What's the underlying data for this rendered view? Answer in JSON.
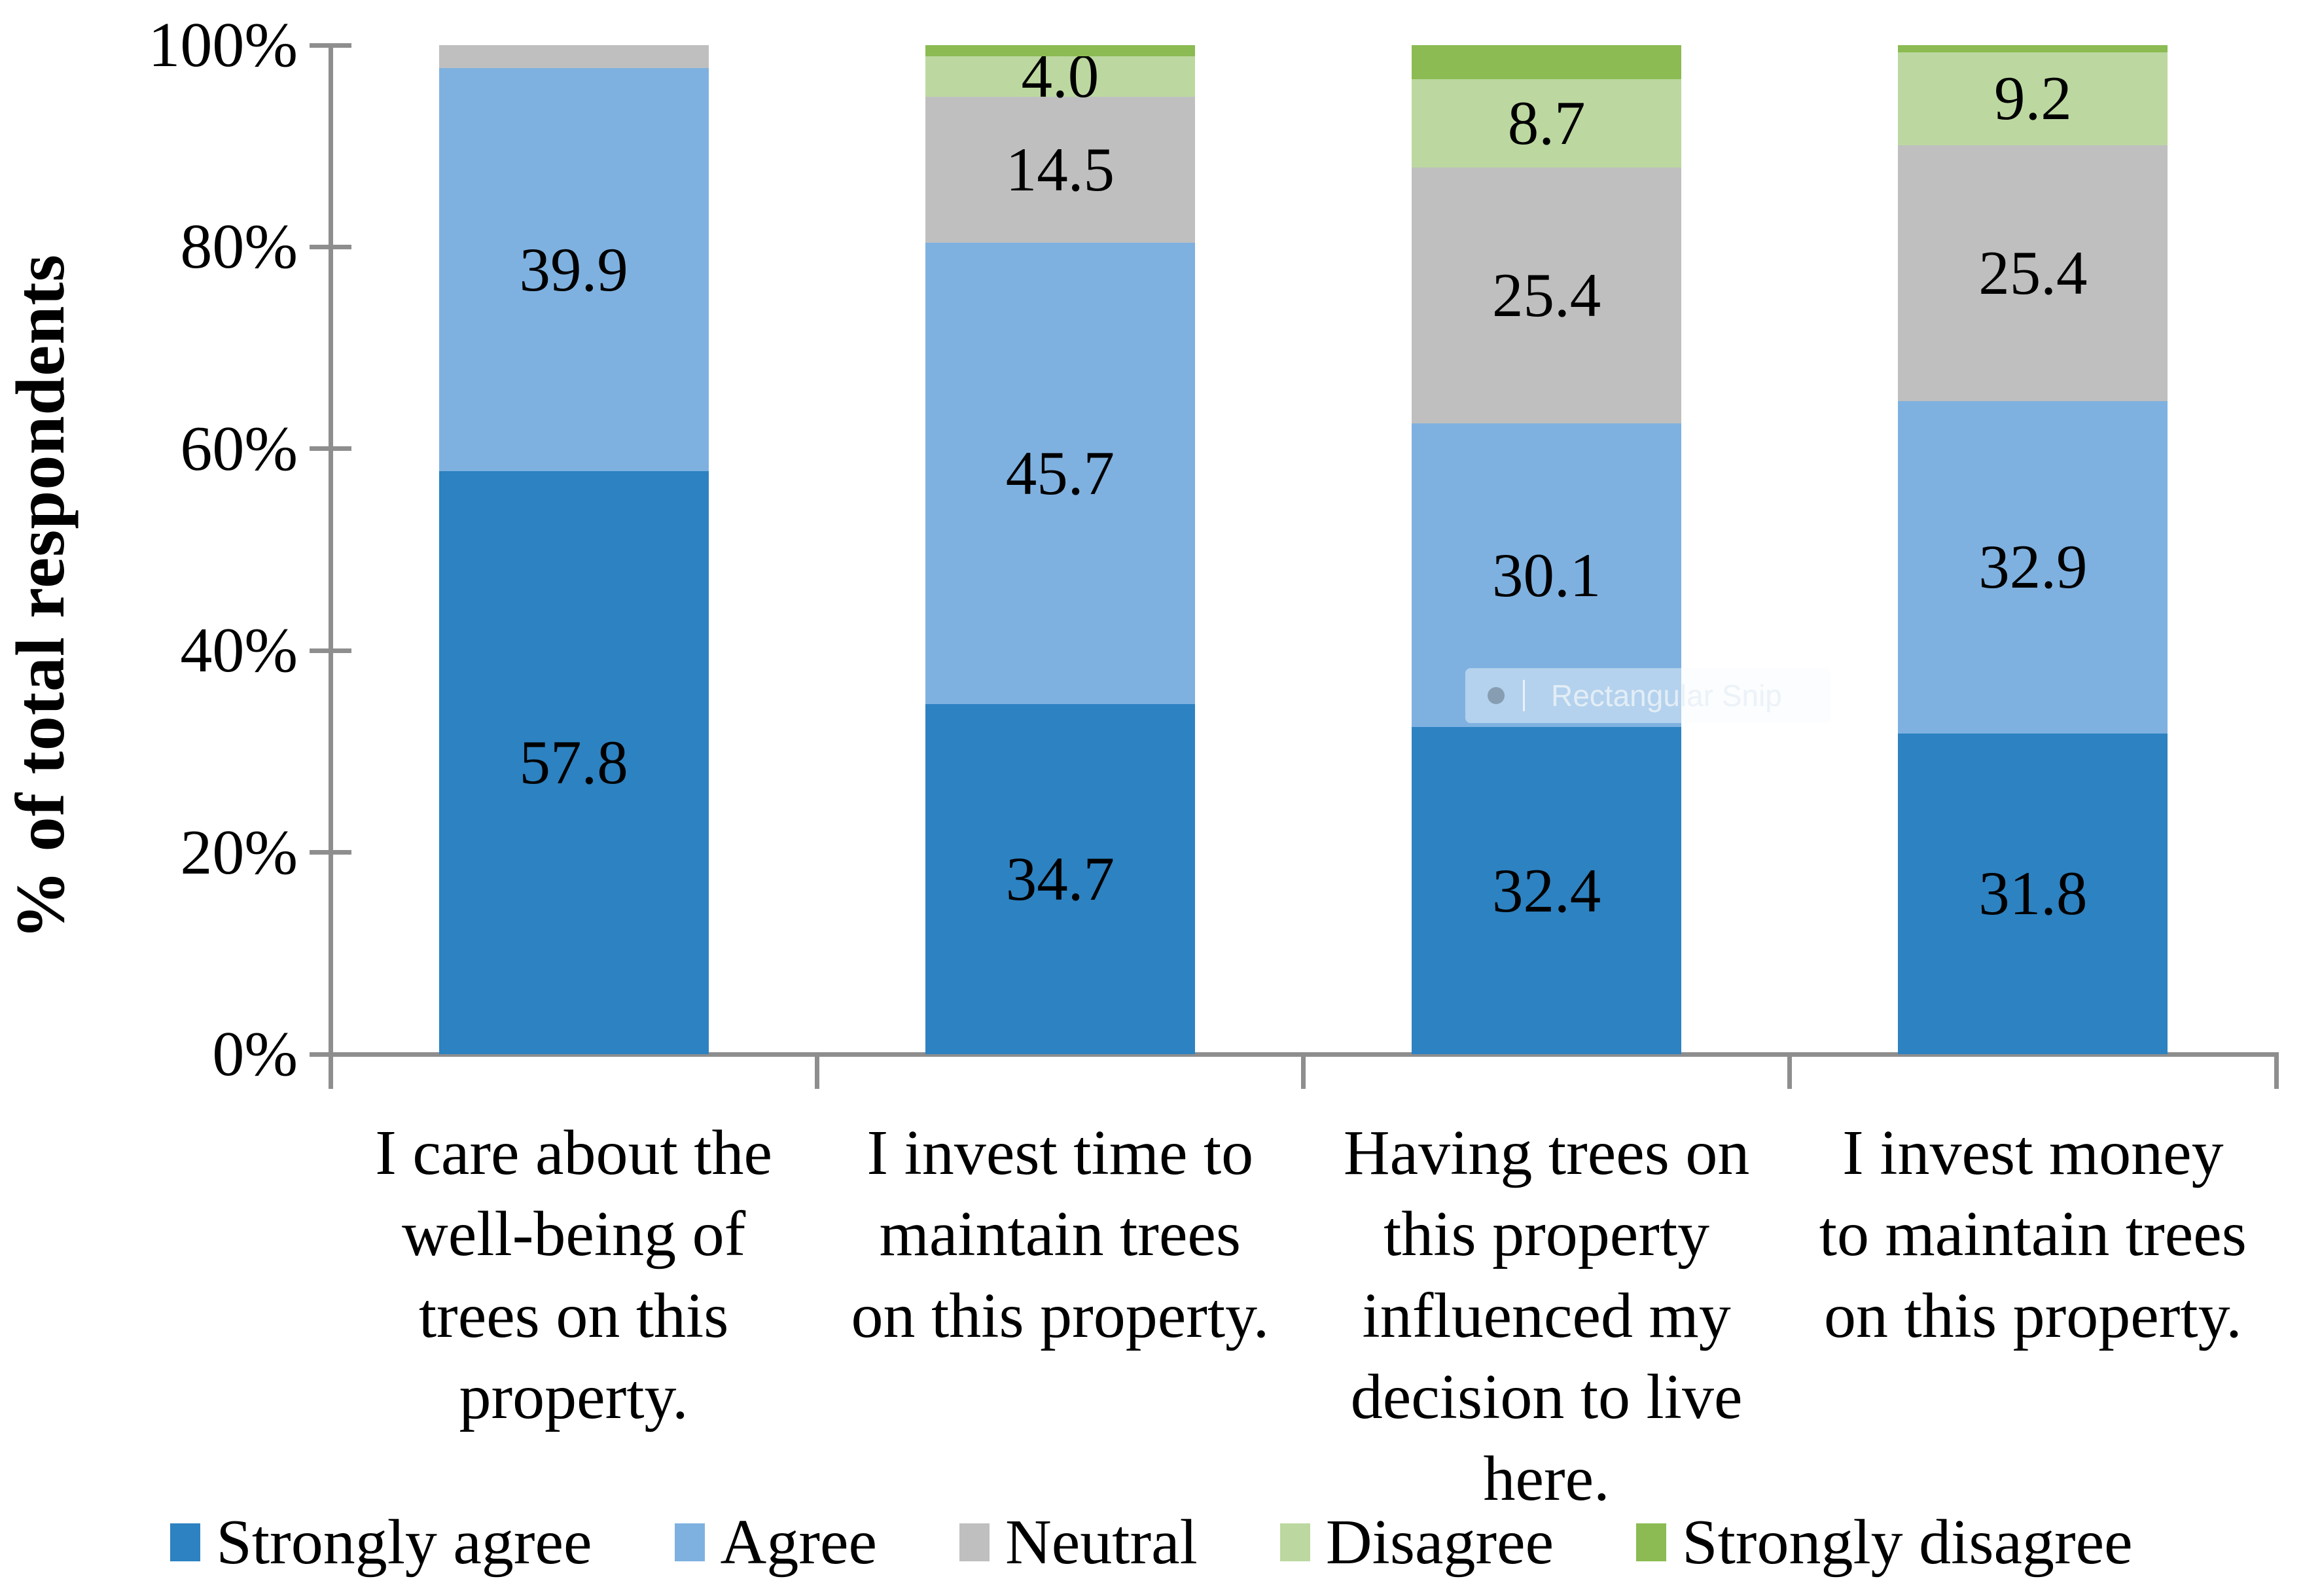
{
  "chart_data": {
    "type": "bar",
    "subtype": "stacked-100",
    "title": "",
    "ylabel": "% of total respondents",
    "xlabel": "",
    "ylim": [
      0,
      100
    ],
    "y_ticks": [
      "0%",
      "20%",
      "40%",
      "60%",
      "80%",
      "100%"
    ],
    "grid": false,
    "legend_position": "bottom",
    "categories": [
      {
        "lines": [
          "I care about the",
          "well-being of",
          "trees on this",
          "property."
        ]
      },
      {
        "lines": [
          "I invest time to",
          "maintain trees",
          "on this property."
        ]
      },
      {
        "lines": [
          "Having trees on",
          "this property",
          "influenced my",
          "decision to live",
          "here."
        ]
      },
      {
        "lines": [
          "I invest money",
          "to maintain trees",
          "on this property."
        ]
      }
    ],
    "series": [
      {
        "name": "Strongly agree",
        "color": "#2D82C1",
        "values": [
          57.8,
          34.7,
          32.4,
          31.8
        ],
        "labels": [
          "57.8",
          "34.7",
          "32.4",
          "31.8"
        ]
      },
      {
        "name": "Agree",
        "color": "#7EB1E0",
        "values": [
          39.9,
          45.7,
          30.1,
          32.9
        ],
        "labels": [
          "39.9",
          "45.7",
          "30.1",
          "32.9"
        ]
      },
      {
        "name": "Neutral",
        "color": "#BFBFBF",
        "values": [
          2.3,
          14.5,
          25.4,
          25.4
        ],
        "labels": [
          "",
          "14.5",
          "25.4",
          "25.4"
        ]
      },
      {
        "name": "Disagree",
        "color": "#BCD8A0",
        "values": [
          0.0,
          4.0,
          8.7,
          9.2
        ],
        "labels": [
          "",
          "4.0",
          "8.7",
          "9.2"
        ]
      },
      {
        "name": "Strongly disagree",
        "color": "#8BBB52",
        "values": [
          0.0,
          1.1,
          3.4,
          0.7
        ],
        "labels": [
          "",
          "",
          "",
          ""
        ]
      }
    ]
  },
  "overlay": {
    "tooltip_text": "Rectangular Snip"
  },
  "style_colors": {
    "axis_line": "#8E8E8E",
    "label_text": "#000000"
  }
}
